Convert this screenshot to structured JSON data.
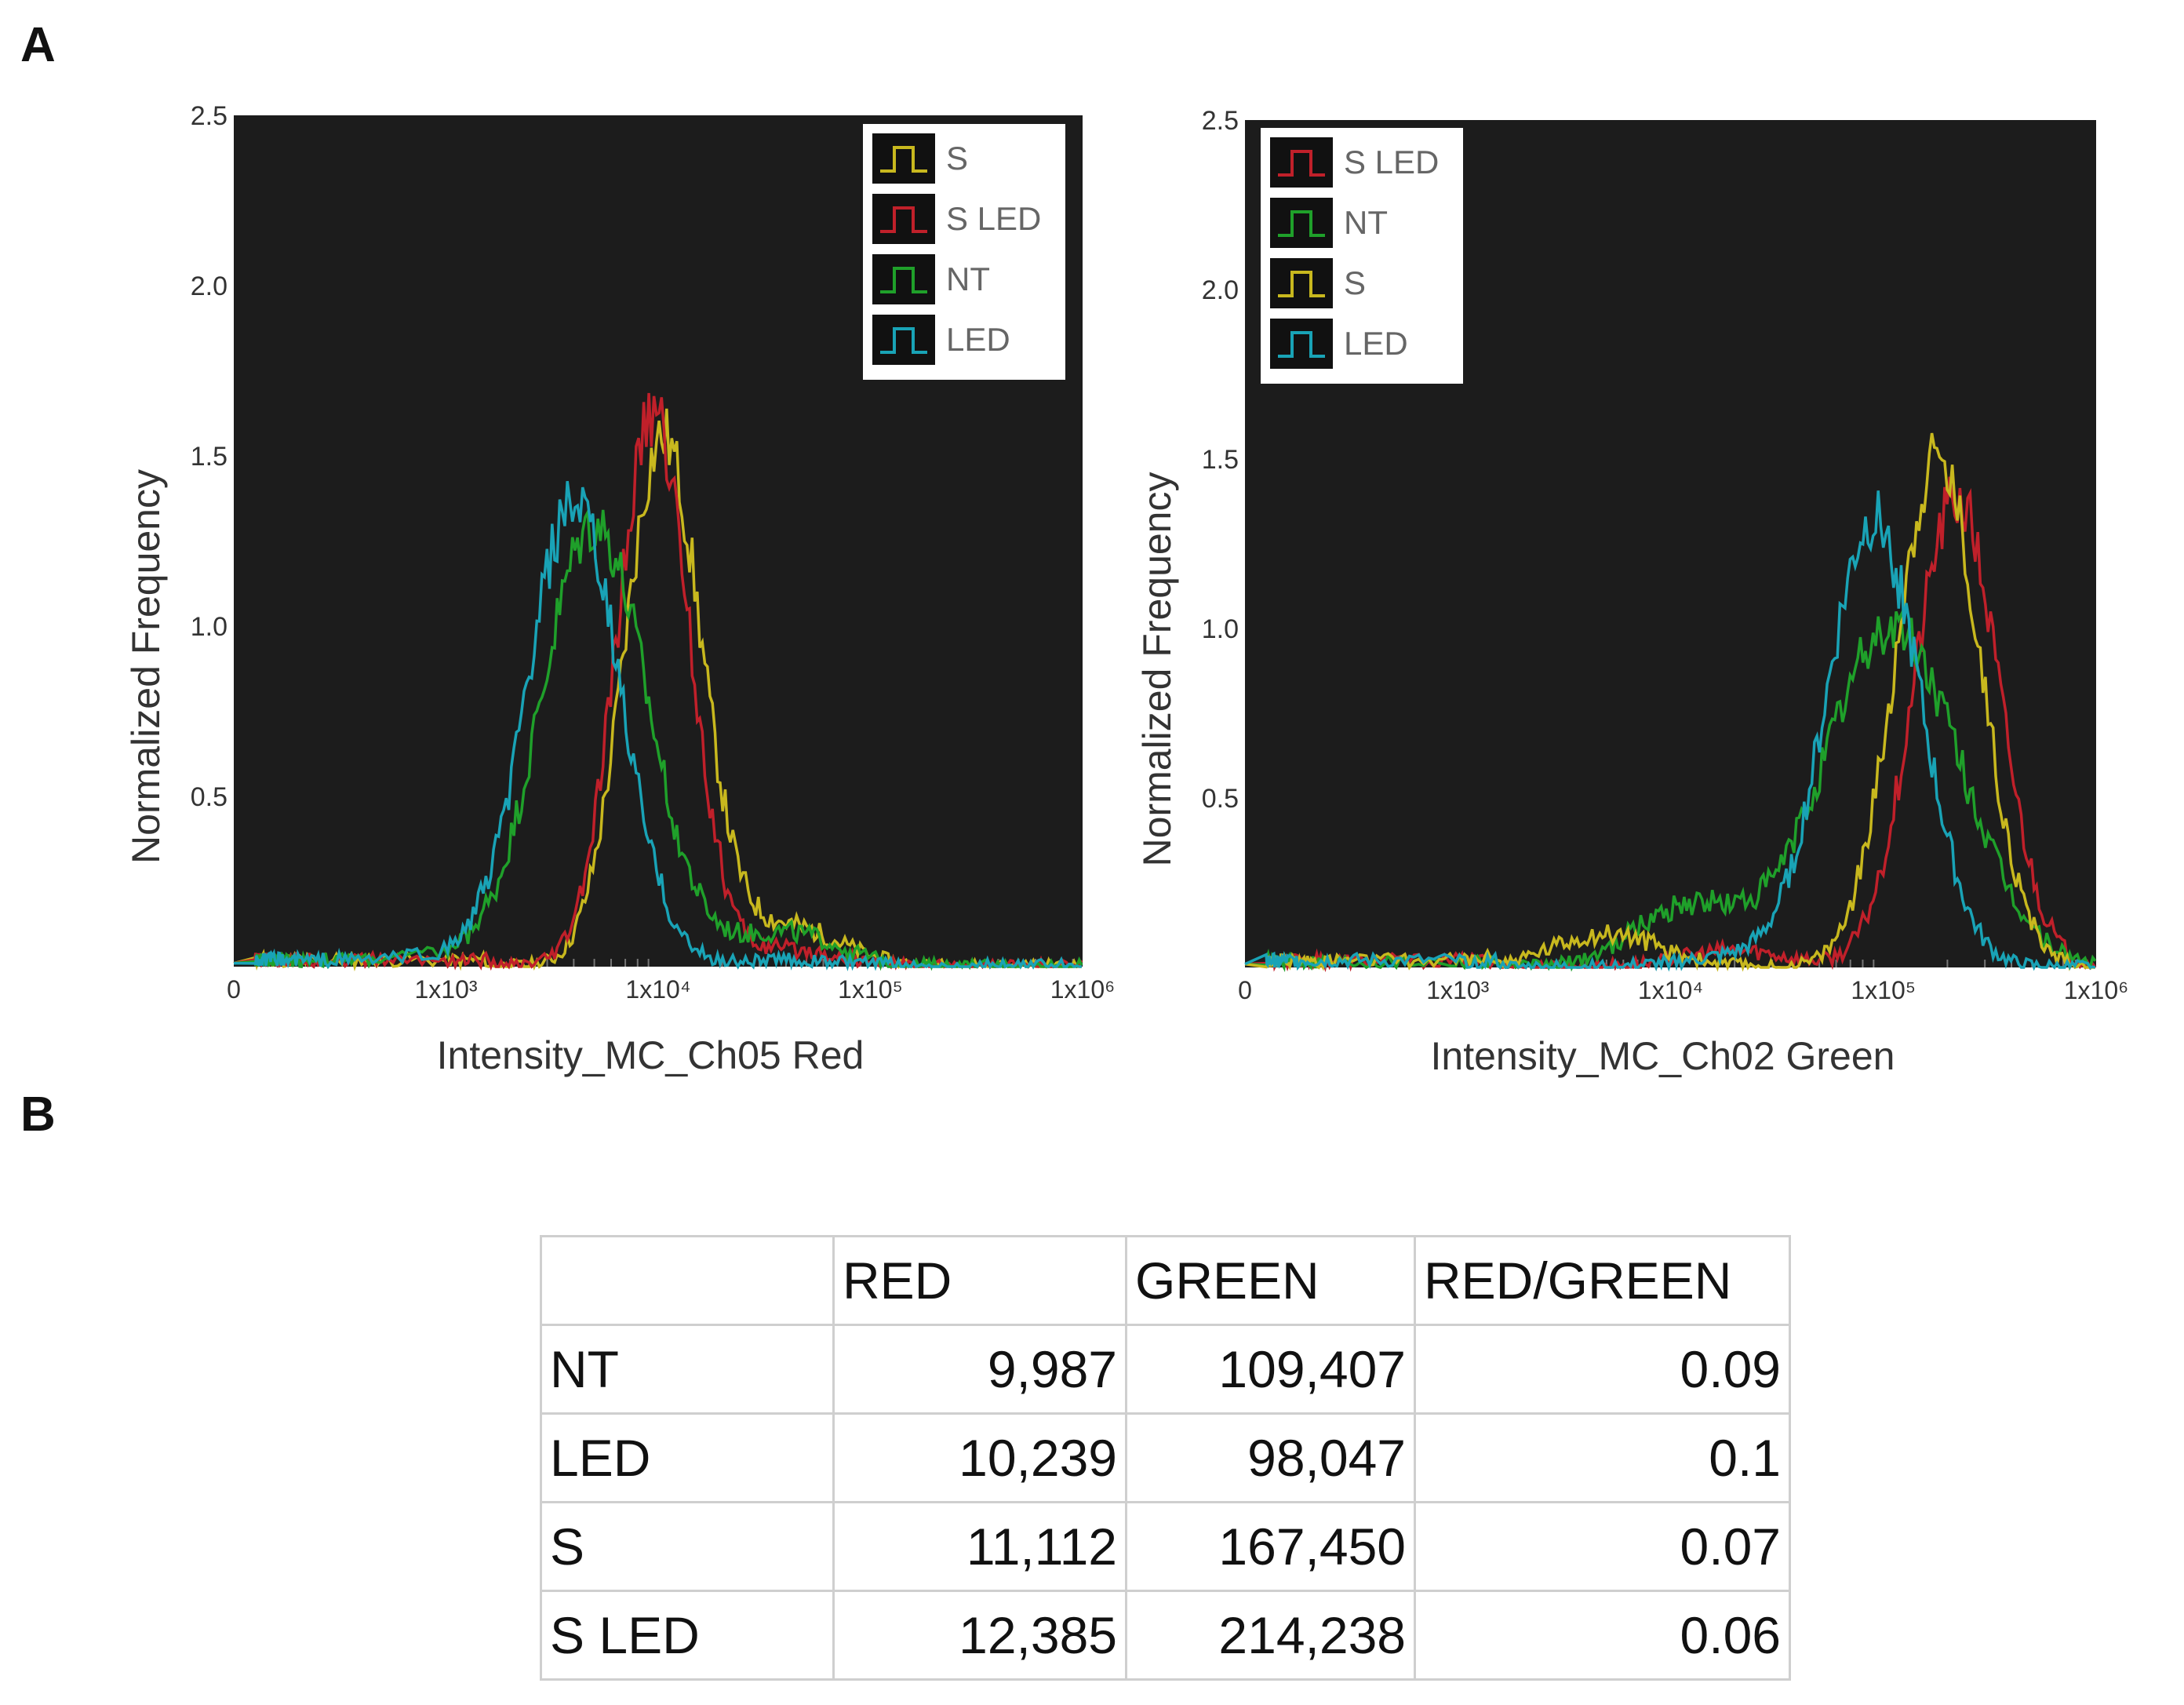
{
  "panel_labels": {
    "a": "A",
    "b": "B"
  },
  "colors": {
    "background": "#1c1c1c",
    "S": "#c8b81e",
    "S LED": "#c0202a",
    "NT": "#1fa02a",
    "LED": "#19a3b6",
    "legend_box": "#ffffff",
    "axis_text": "#333333"
  },
  "chart_data": [
    {
      "type": "line",
      "title": "",
      "xlabel": "Intensity_MC_Ch05 Red",
      "ylabel": "Normalized Frequency",
      "xscale": "log",
      "xlim": [
        0,
        1000000
      ],
      "ylim": [
        0,
        2.5
      ],
      "yticks": [
        "0.5",
        "1.0",
        "1.5",
        "2.0",
        "2.5"
      ],
      "xticks": [
        "0",
        "1x10³",
        "1x10⁴",
        "1x10⁵",
        "1x10⁶"
      ],
      "legend_position": "top-right",
      "legend": [
        "S",
        "S LED",
        "NT",
        "LED"
      ],
      "series": [
        {
          "name": "S",
          "peak_x": 10500,
          "peak_y": 1.55,
          "sigma": 0.18,
          "tail_x": 40000,
          "tail_y": 0.12
        },
        {
          "name": "S LED",
          "peak_x": 9500,
          "peak_y": 1.62,
          "sigma": 0.17,
          "tail_x": 40000,
          "tail_y": 0.05
        },
        {
          "name": "NT",
          "peak_x": 5000,
          "peak_y": 1.3,
          "sigma": 0.25,
          "tail_x": 40000,
          "tail_y": 0.1
        },
        {
          "name": "LED",
          "peak_x": 4000,
          "peak_y": 1.35,
          "sigma": 0.22,
          "tail_x": 40000,
          "tail_y": 0.02
        }
      ]
    },
    {
      "type": "line",
      "title": "",
      "xlabel": "Intensity_MC_Ch02 Green",
      "ylabel": "Normalized Frequency",
      "xscale": "log",
      "xlim": [
        0,
        1000000
      ],
      "ylim": [
        0,
        2.5
      ],
      "yticks": [
        "0.5",
        "1.0",
        "1.5",
        "2.0",
        "2.5"
      ],
      "xticks": [
        "0",
        "1x10³",
        "1x10⁴",
        "1x10⁵",
        "1x10⁶"
      ],
      "legend_position": "top-left",
      "legend": [
        "S LED",
        "NT",
        "S",
        "LED"
      ],
      "series": [
        {
          "name": "S LED",
          "peak_x": 220000,
          "peak_y": 1.38,
          "sigma": 0.2,
          "tail_x": 20000,
          "tail_y": 0.05
        },
        {
          "name": "NT",
          "peak_x": 110000,
          "peak_y": 1.0,
          "sigma": 0.32,
          "tail_x": 12000,
          "tail_y": 0.18
        },
        {
          "name": "S",
          "peak_x": 180000,
          "peak_y": 1.5,
          "sigma": 0.2,
          "tail_x": 5000,
          "tail_y": 0.1
        },
        {
          "name": "LED",
          "peak_x": 90000,
          "peak_y": 1.32,
          "sigma": 0.22,
          "tail_x": 20000,
          "tail_y": 0.03
        }
      ]
    },
    {
      "type": "table",
      "columns": [
        "",
        "RED",
        "GREEN",
        "RED/GREEN"
      ],
      "rows": [
        [
          "NT",
          "9,987",
          "109,407",
          "0.09"
        ],
        [
          "LED",
          "10,239",
          "98,047",
          "0.1"
        ],
        [
          "S",
          "11,112",
          "167,450",
          "0.07"
        ],
        [
          "S LED",
          "12,385",
          "214,238",
          "0.06"
        ]
      ]
    }
  ]
}
